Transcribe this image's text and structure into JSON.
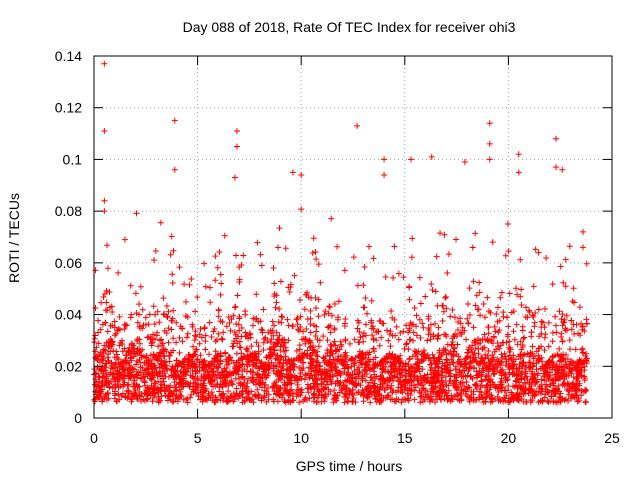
{
  "chart_data": {
    "type": "scatter",
    "title": "Day 088 of 2018, Rate Of TEC Index for receiver ohi3",
    "xlabel": "GPS time / hours",
    "ylabel": "ROTI / TECUs",
    "xlim": [
      0,
      25
    ],
    "ylim": [
      0,
      0.14
    ],
    "xticks": [
      0,
      5,
      10,
      15,
      20,
      25
    ],
    "yticks": [
      0,
      0.02,
      0.04,
      0.06,
      0.08,
      0.1,
      0.12,
      0.14
    ],
    "xtick_labels": [
      "0",
      "5",
      "10",
      "15",
      "20",
      "25"
    ],
    "ytick_labels": [
      "0",
      "0.02",
      "0.04",
      "0.06",
      "0.08",
      "0.1",
      "0.12",
      "0.14"
    ],
    "grid": true,
    "marker": "plus",
    "color": "#ff0000",
    "series": [
      {
        "name": "ohi3",
        "notable_points": [
          [
            0.5,
            0.137
          ],
          [
            0.5,
            0.111
          ],
          [
            0.5,
            0.084
          ],
          [
            0.5,
            0.08
          ],
          [
            3.9,
            0.115
          ],
          [
            3.9,
            0.096
          ],
          [
            6.9,
            0.111
          ],
          [
            6.9,
            0.105
          ],
          [
            6.8,
            0.093
          ],
          [
            9.6,
            0.095
          ],
          [
            10.0,
            0.094
          ],
          [
            12.7,
            0.113
          ],
          [
            14.0,
            0.1
          ],
          [
            14.0,
            0.094
          ],
          [
            15.3,
            0.1
          ],
          [
            16.3,
            0.101
          ],
          [
            17.9,
            0.099
          ],
          [
            19.1,
            0.114
          ],
          [
            19.1,
            0.106
          ],
          [
            19.1,
            0.1
          ],
          [
            20.5,
            0.102
          ],
          [
            20.5,
            0.095
          ],
          [
            22.3,
            0.108
          ],
          [
            22.3,
            0.097
          ],
          [
            22.6,
            0.096
          ],
          [
            23.6,
            0.072
          ],
          [
            23.6,
            0.066
          ]
        ],
        "x_range_hours": [
          0,
          23.8
        ],
        "typical_band": [
          0.005,
          0.04
        ],
        "point_count_approx": 6000
      }
    ]
  }
}
